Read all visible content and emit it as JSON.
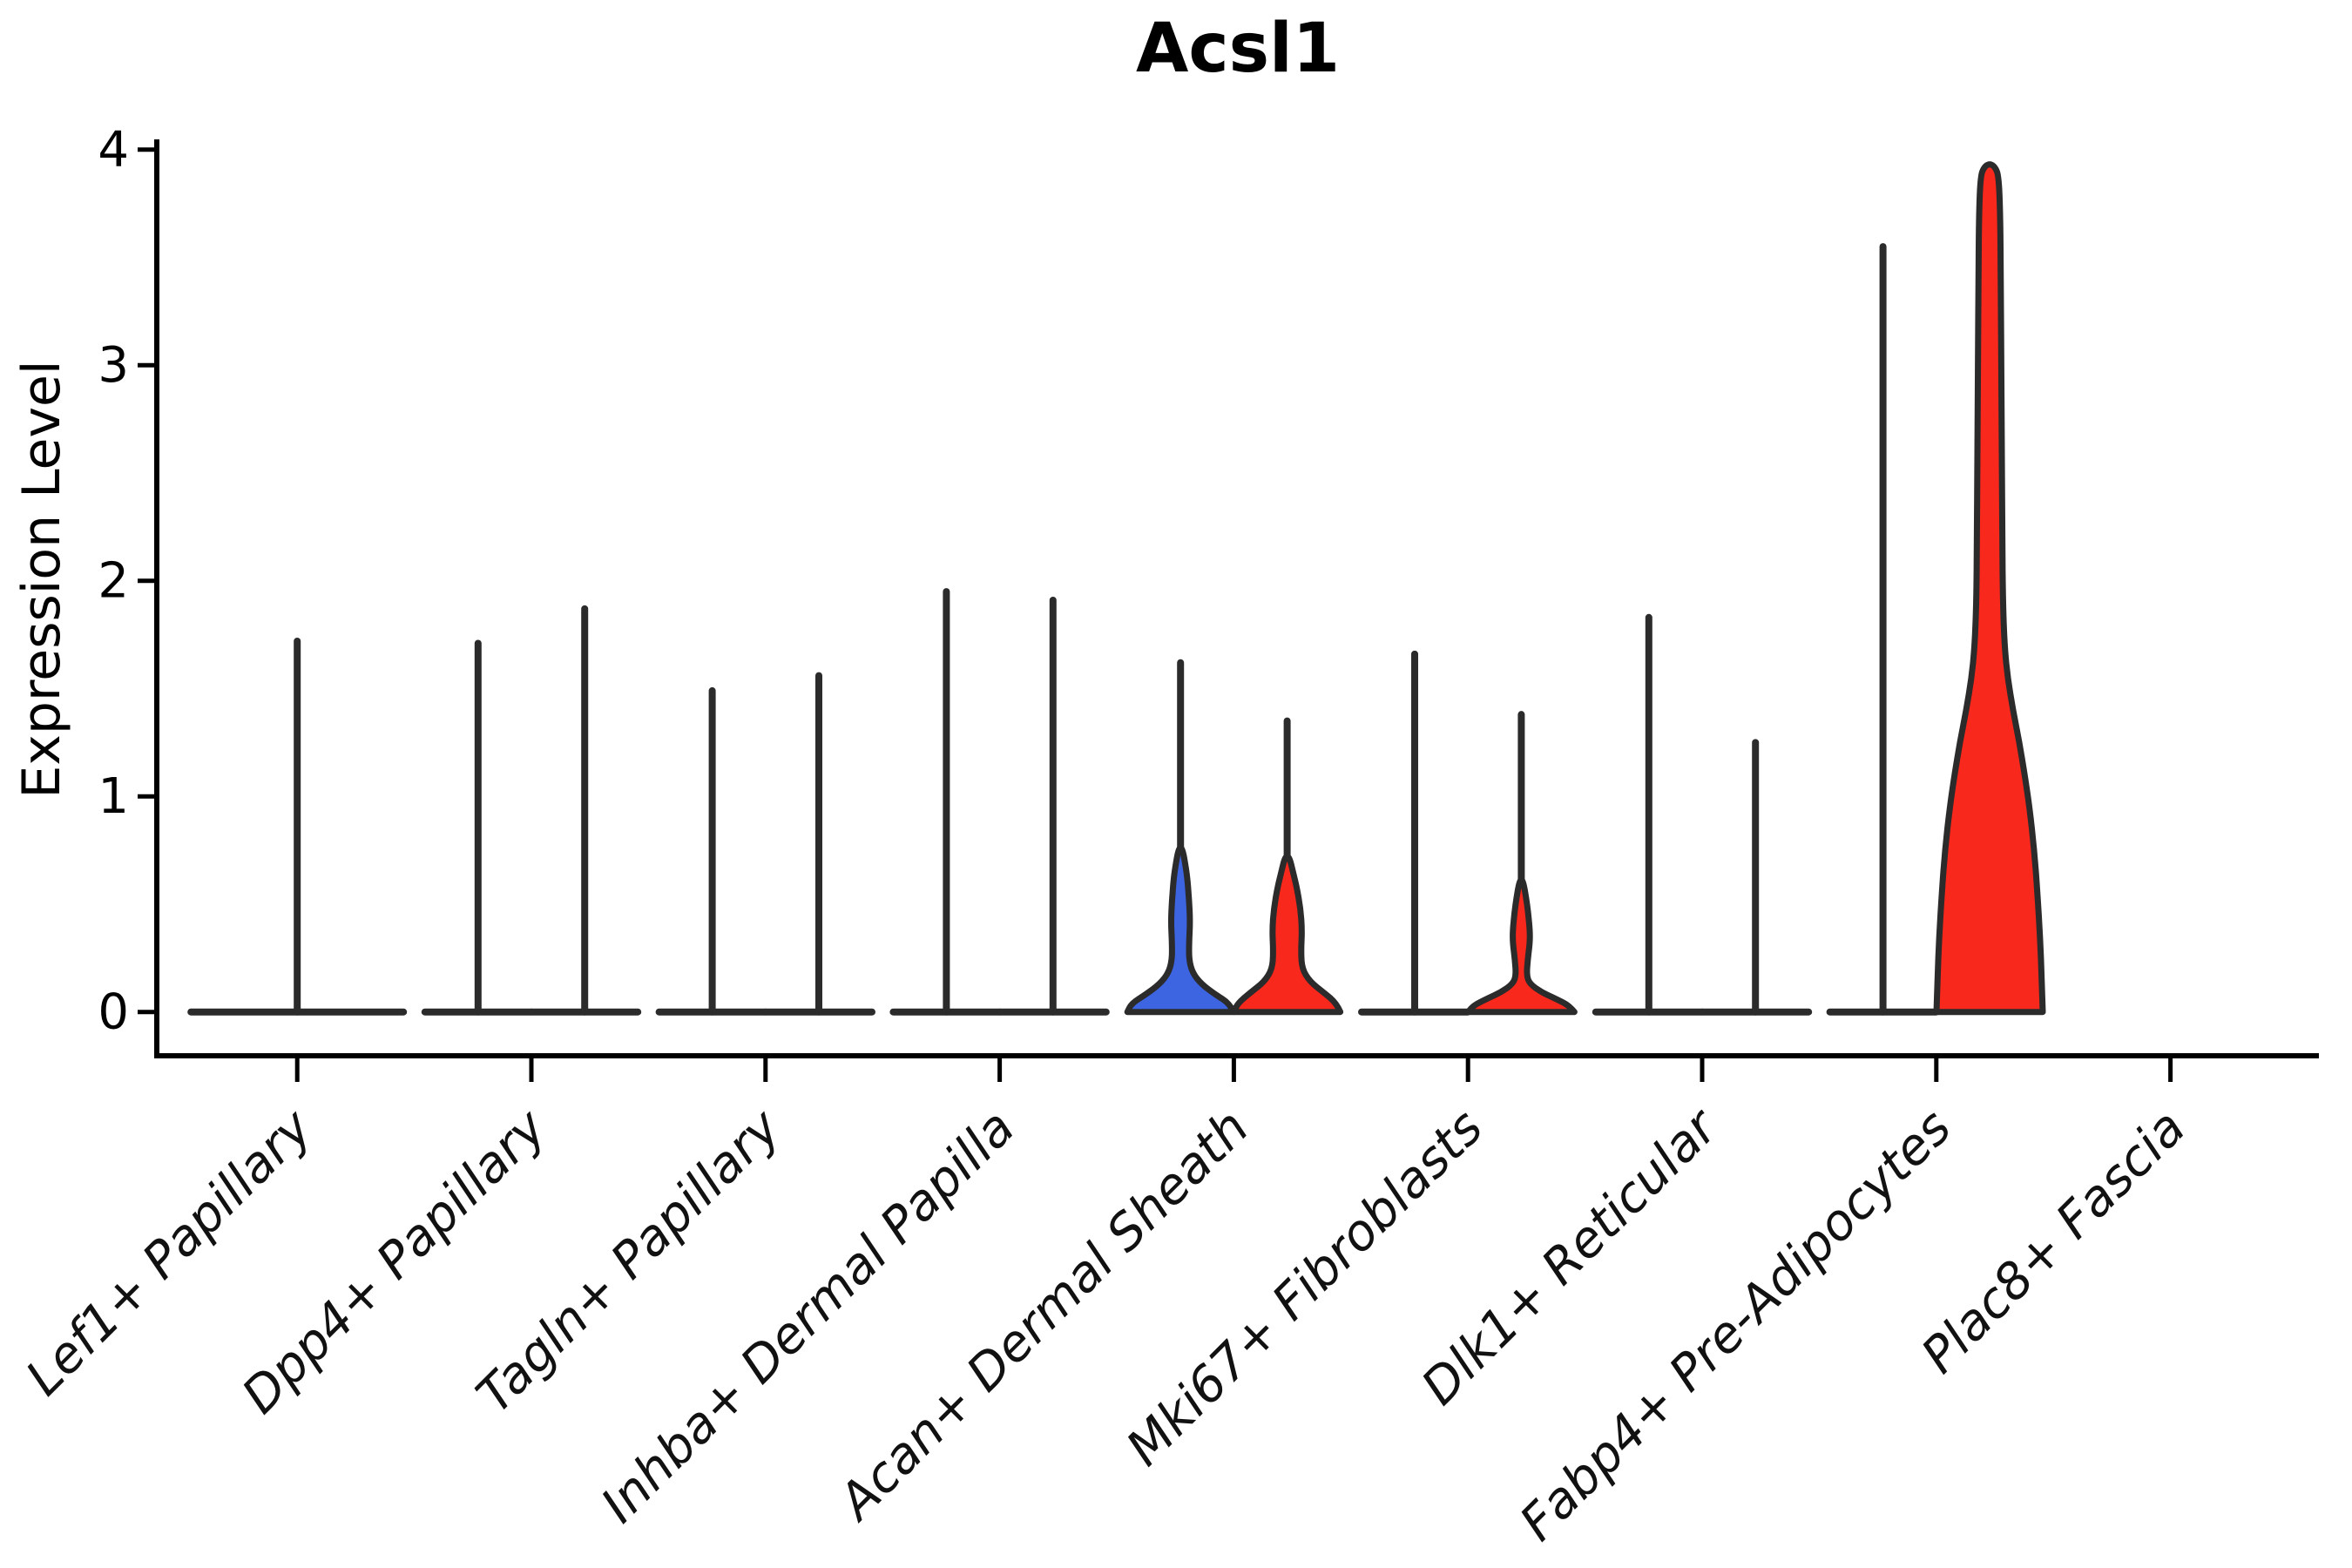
{
  "title": "Acsl1",
  "y_axis": {
    "label": "Expression Level",
    "tick_labels": [
      "0",
      "1",
      "2",
      "3",
      "4"
    ],
    "tick_values": [
      0,
      1,
      2,
      3,
      4
    ],
    "range": [
      0,
      4
    ]
  },
  "colors": {
    "blue_fill": "#3D64E1",
    "red_fill": "#F8281D",
    "outline": "#2B2B2B",
    "axis": "#000000"
  },
  "chart_data": {
    "type": "violin",
    "title": "Acsl1",
    "ylabel": "Expression Level",
    "xlabel": "",
    "ylim": [
      0,
      4
    ],
    "grid": false,
    "legend": "none",
    "categories": [
      "Lef1+ Papillary",
      "Dpp4+ Papillary",
      "Tagln+ Papillary",
      "Inhba+ Dermal Papilla",
      "Acan+ Dermal Sheath",
      "Mki67+ Fibroblasts",
      "Dlk1+ Reticular",
      "Fabp4+ Pre-Adipocytes",
      "Plac8+ Fascia"
    ],
    "violins": [
      {
        "category_index": 0,
        "side": "center",
        "fill": "none",
        "max_expression": 1.72,
        "body": null
      },
      {
        "category_index": 1,
        "side": "left",
        "fill": "none",
        "max_expression": 1.71,
        "body": null
      },
      {
        "category_index": 1,
        "side": "right",
        "fill": "none",
        "max_expression": 1.87,
        "body": null
      },
      {
        "category_index": 2,
        "side": "left",
        "fill": "none",
        "max_expression": 1.49,
        "body": null
      },
      {
        "category_index": 2,
        "side": "right",
        "fill": "none",
        "max_expression": 1.56,
        "body": null
      },
      {
        "category_index": 3,
        "side": "left",
        "fill": "none",
        "max_expression": 1.95,
        "body": null
      },
      {
        "category_index": 3,
        "side": "right",
        "fill": "none",
        "max_expression": 1.91,
        "body": null
      },
      {
        "category_index": 4,
        "side": "left",
        "fill": "blue",
        "max_expression": 1.62,
        "body": [
          [
            0,
            1.0
          ],
          [
            0.04,
            0.92
          ],
          [
            0.08,
            0.66
          ],
          [
            0.13,
            0.39
          ],
          [
            0.18,
            0.23
          ],
          [
            0.24,
            0.16
          ],
          [
            0.32,
            0.16
          ],
          [
            0.42,
            0.18
          ],
          [
            0.52,
            0.16
          ],
          [
            0.62,
            0.13
          ],
          [
            0.7,
            0.08
          ],
          [
            0.75,
            0.04
          ]
        ]
      },
      {
        "category_index": 4,
        "side": "right",
        "fill": "red",
        "max_expression": 1.35,
        "body": [
          [
            0,
            1.0
          ],
          [
            0.04,
            0.93
          ],
          [
            0.09,
            0.69
          ],
          [
            0.14,
            0.43
          ],
          [
            0.2,
            0.28
          ],
          [
            0.28,
            0.26
          ],
          [
            0.38,
            0.28
          ],
          [
            0.48,
            0.25
          ],
          [
            0.58,
            0.18
          ],
          [
            0.66,
            0.1
          ],
          [
            0.71,
            0.05
          ]
        ]
      },
      {
        "category_index": 5,
        "side": "left",
        "fill": "none",
        "max_expression": 1.66,
        "body": null
      },
      {
        "category_index": 5,
        "side": "right",
        "fill": "red",
        "max_expression": 1.38,
        "body": [
          [
            0,
            1.0
          ],
          [
            0.03,
            0.9
          ],
          [
            0.06,
            0.66
          ],
          [
            0.09,
            0.39
          ],
          [
            0.13,
            0.16
          ],
          [
            0.17,
            0.1
          ],
          [
            0.24,
            0.12
          ],
          [
            0.32,
            0.16
          ],
          [
            0.38,
            0.16
          ],
          [
            0.46,
            0.13
          ],
          [
            0.53,
            0.09
          ],
          [
            0.6,
            0.04
          ]
        ]
      },
      {
        "category_index": 6,
        "side": "left",
        "fill": "none",
        "max_expression": 1.83,
        "body": null
      },
      {
        "category_index": 6,
        "side": "right",
        "fill": "none",
        "max_expression": 1.25,
        "body": null
      },
      {
        "category_index": 7,
        "side": "left",
        "fill": "none",
        "max_expression": 3.55,
        "body": null
      },
      {
        "category_index": 7,
        "side": "right",
        "fill": "red",
        "max_expression": 3.92,
        "body": [
          [
            0,
            1.0
          ],
          [
            0.15,
            0.98
          ],
          [
            0.35,
            0.95
          ],
          [
            0.55,
            0.9
          ],
          [
            0.75,
            0.84
          ],
          [
            0.95,
            0.75
          ],
          [
            1.1,
            0.66
          ],
          [
            1.25,
            0.56
          ],
          [
            1.4,
            0.44
          ],
          [
            1.55,
            0.34
          ],
          [
            1.7,
            0.28
          ],
          [
            1.9,
            0.25
          ],
          [
            2.2,
            0.24
          ],
          [
            2.6,
            0.23
          ],
          [
            3.0,
            0.22
          ],
          [
            3.4,
            0.21
          ],
          [
            3.7,
            0.2
          ],
          [
            3.88,
            0.17
          ],
          [
            3.92,
            0.1
          ]
        ],
        "body_reaches_max": true
      }
    ]
  }
}
